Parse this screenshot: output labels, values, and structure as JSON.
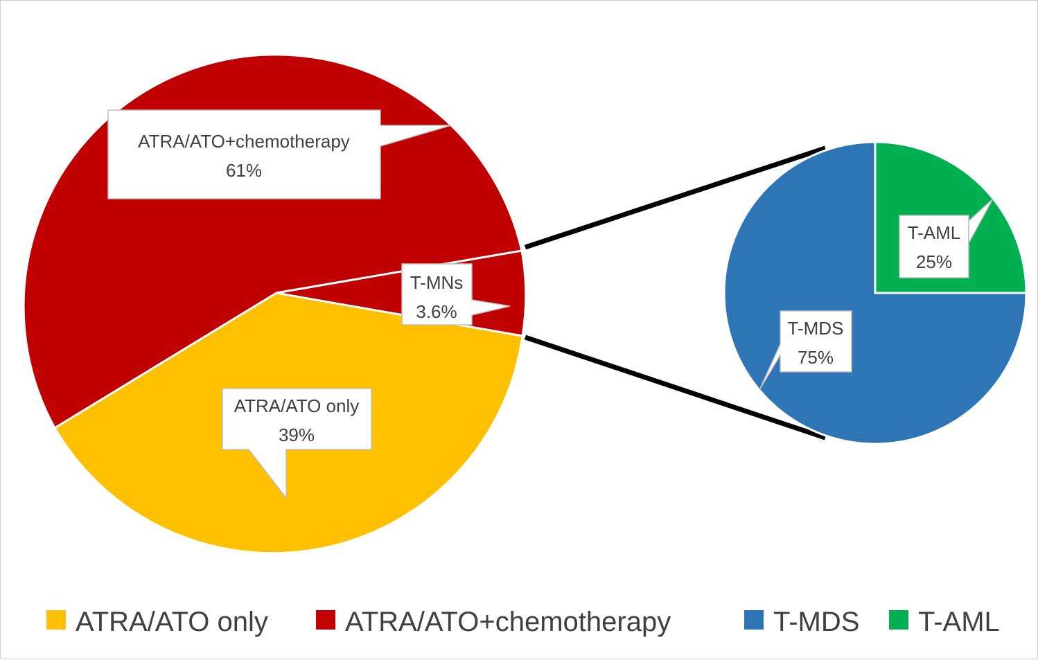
{
  "chart_data": [
    {
      "type": "pie",
      "slices": [
        {
          "label": "ATRA/ATO only",
          "value": 39,
          "display": "39%",
          "color": "#FFC000"
        },
        {
          "label": "ATRA/ATO+chemotherapy",
          "value": 61,
          "display": "61%",
          "color": "#C00000"
        },
        {
          "label": "T-MNs",
          "value": 3.6,
          "display": "3.6%",
          "color": "#C00000"
        }
      ]
    },
    {
      "type": "pie",
      "slices": [
        {
          "label": "T-MDS",
          "value": 75,
          "display": "75%",
          "color": "#2E75B6"
        },
        {
          "label": "T-AML",
          "value": 25,
          "display": "25%",
          "color": "#00B050"
        }
      ]
    }
  ],
  "legend": [
    {
      "label": "ATRA/ATO only",
      "color": "#FFC000"
    },
    {
      "label": "ATRA/ATO+chemotherapy",
      "color": "#C00000"
    },
    {
      "label": "T-MDS",
      "color": "#2E75B6"
    },
    {
      "label": "T-AML",
      "color": "#00B050"
    }
  ]
}
